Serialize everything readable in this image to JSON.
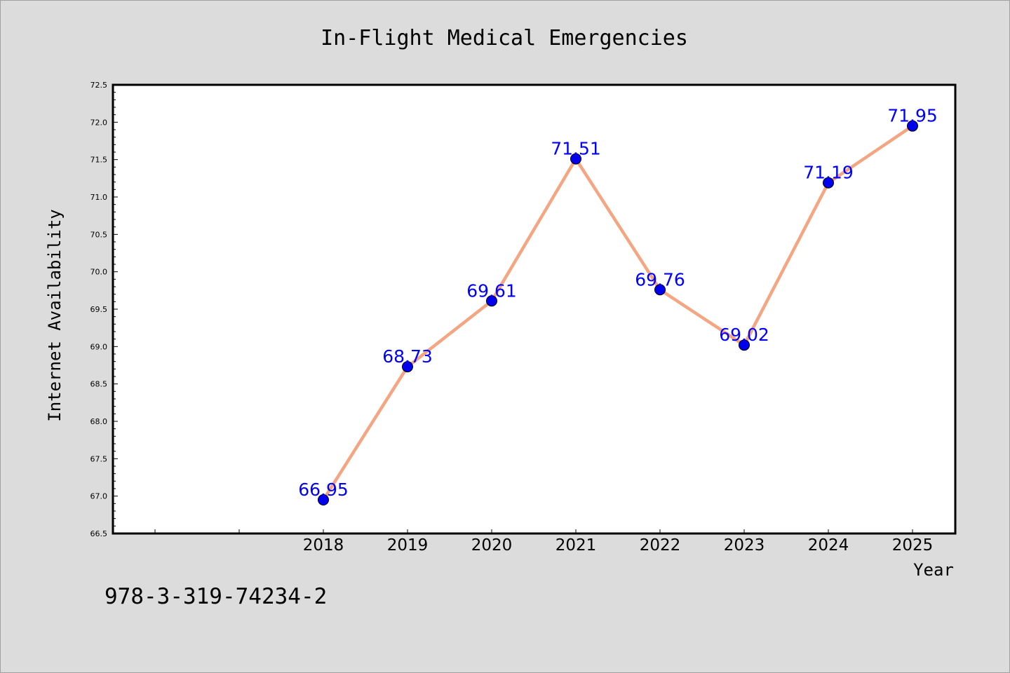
{
  "chart_data": {
    "type": "line",
    "title": "In-Flight Medical Emergencies",
    "xlabel": "Year",
    "ylabel": "Internet Availability",
    "categories": [
      "2018",
      "2019",
      "2020",
      "2021",
      "2022",
      "2023",
      "2024",
      "2025"
    ],
    "values": [
      66.95,
      68.73,
      69.61,
      71.51,
      69.76,
      69.02,
      71.19,
      71.95
    ],
    "data_labels": [
      "66.95",
      "68.73",
      "69.61",
      "71.51",
      "69.76",
      "69.02",
      "71.19",
      "71.95"
    ],
    "ylim": [
      66.5,
      72.5
    ],
    "yticks": [
      "66.5",
      "67.0",
      "67.5",
      "68.0",
      "68.5",
      "69.0",
      "69.5",
      "70.0",
      "70.5",
      "71.0",
      "71.5",
      "72.0",
      "72.5"
    ],
    "grid": false,
    "line_color": "#f4a582",
    "marker_color": "#0000ee",
    "label_color": "#0000ff"
  },
  "footer": {
    "isbn": "978-3-319-74234-2"
  }
}
